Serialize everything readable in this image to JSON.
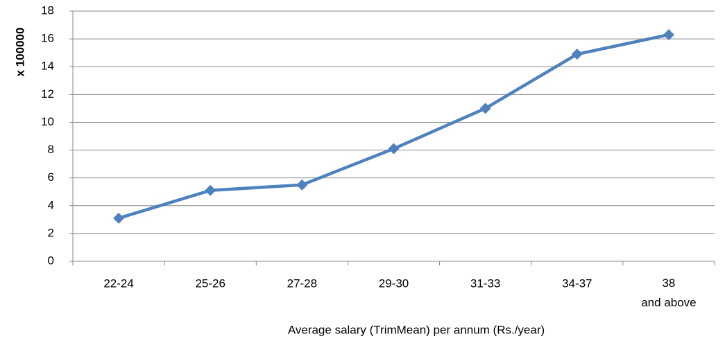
{
  "chart_data": {
    "type": "line",
    "y_label": "x 100000",
    "x_label": "Average salary (TrimMean) per annum (Rs./year)",
    "categories": [
      "22-24",
      "25-26",
      "27-28",
      "29-30",
      "31-33",
      "34-37",
      "38\nand above"
    ],
    "values": [
      3.1,
      5.1,
      5.5,
      8.1,
      11.0,
      14.9,
      16.3
    ],
    "color": "#4f81bd",
    "ylim": [
      0,
      18
    ],
    "yticks": [
      0,
      2,
      4,
      6,
      8,
      10,
      12,
      14,
      16,
      18
    ],
    "grid": true
  }
}
